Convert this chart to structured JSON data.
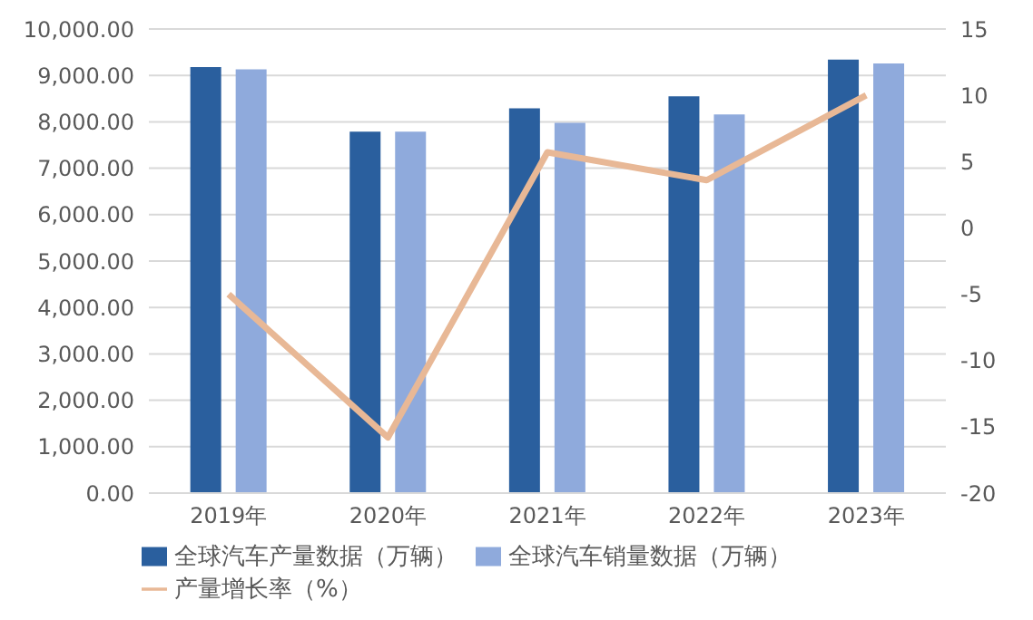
{
  "chart_data": {
    "type": "bar",
    "categories": [
      "2019年",
      "2020年",
      "2021年",
      "2022年",
      "2023年"
    ],
    "series": [
      {
        "name": "全球汽车产量数据（万辆）",
        "color": "#2a5f9e",
        "values": [
          9180,
          7790,
          8290,
          8550,
          9340
        ]
      },
      {
        "name": "全球汽车销量数据（万辆）",
        "color": "#8faadc",
        "values": [
          9130,
          7790,
          7980,
          8160,
          9260
        ]
      },
      {
        "name": "产量增长率（%）",
        "type": "line",
        "axis": "y2",
        "color": "#e8b896",
        "values": [
          -5,
          -15.8,
          5.7,
          3.6,
          10
        ]
      }
    ],
    "ylim": [
      0,
      10000
    ],
    "yticks": [
      {
        "value": 0,
        "label": "0.00"
      },
      {
        "value": 1000,
        "label": "1,000.00"
      },
      {
        "value": 2000,
        "label": "2,000.00"
      },
      {
        "value": 3000,
        "label": "3,000.00"
      },
      {
        "value": 4000,
        "label": "4,000.00"
      },
      {
        "value": 5000,
        "label": "5,000.00"
      },
      {
        "value": 6000,
        "label": "6,000.00"
      },
      {
        "value": 7000,
        "label": "7,000.00"
      },
      {
        "value": 8000,
        "label": "8,000.00"
      },
      {
        "value": 9000,
        "label": "9,000.00"
      },
      {
        "value": 10000,
        "label": "10,000.00"
      }
    ],
    "y2lim": [
      -20,
      15
    ],
    "y2ticks": [
      -20,
      -15,
      -10,
      -5,
      0,
      5,
      10,
      15
    ],
    "grid": "y",
    "legend": "bottom",
    "marker": "none"
  }
}
